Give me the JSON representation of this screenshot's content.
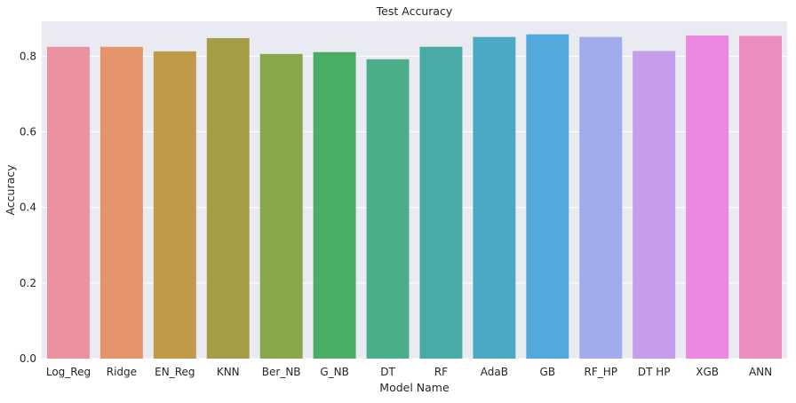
{
  "chart_data": {
    "type": "bar",
    "title": "Test Accuracy",
    "xlabel": "Model Name",
    "ylabel": "Accuracy",
    "categories": [
      "Log_Reg",
      "Ridge",
      "EN_Reg",
      "KNN",
      "Ber_NB",
      "G_NB",
      "DT",
      "RF",
      "AdaB",
      "GB",
      "RF_HP",
      "DT HP",
      "XGB",
      "ANN"
    ],
    "values": [
      0.825,
      0.825,
      0.813,
      0.848,
      0.806,
      0.811,
      0.792,
      0.825,
      0.851,
      0.858,
      0.851,
      0.814,
      0.855,
      0.854
    ],
    "bar_colors": [
      "#eb929e",
      "#e5936a",
      "#c19a49",
      "#a59d45",
      "#88a748",
      "#49ae63",
      "#4aae88",
      "#49aaa6",
      "#4ca9c4",
      "#54a9dc",
      "#a1abec",
      "#c69deb",
      "#ec88e0",
      "#ea8dbf"
    ],
    "ylim": [
      0,
      0.8925
    ],
    "yticks": [
      0.0,
      0.2,
      0.4,
      0.6,
      0.8
    ],
    "ytick_labels": [
      "0.0",
      "0.2",
      "0.4",
      "0.6",
      "0.8"
    ],
    "grid": true,
    "background_color": "#eaeaf2",
    "grid_color": "#ffffff"
  }
}
